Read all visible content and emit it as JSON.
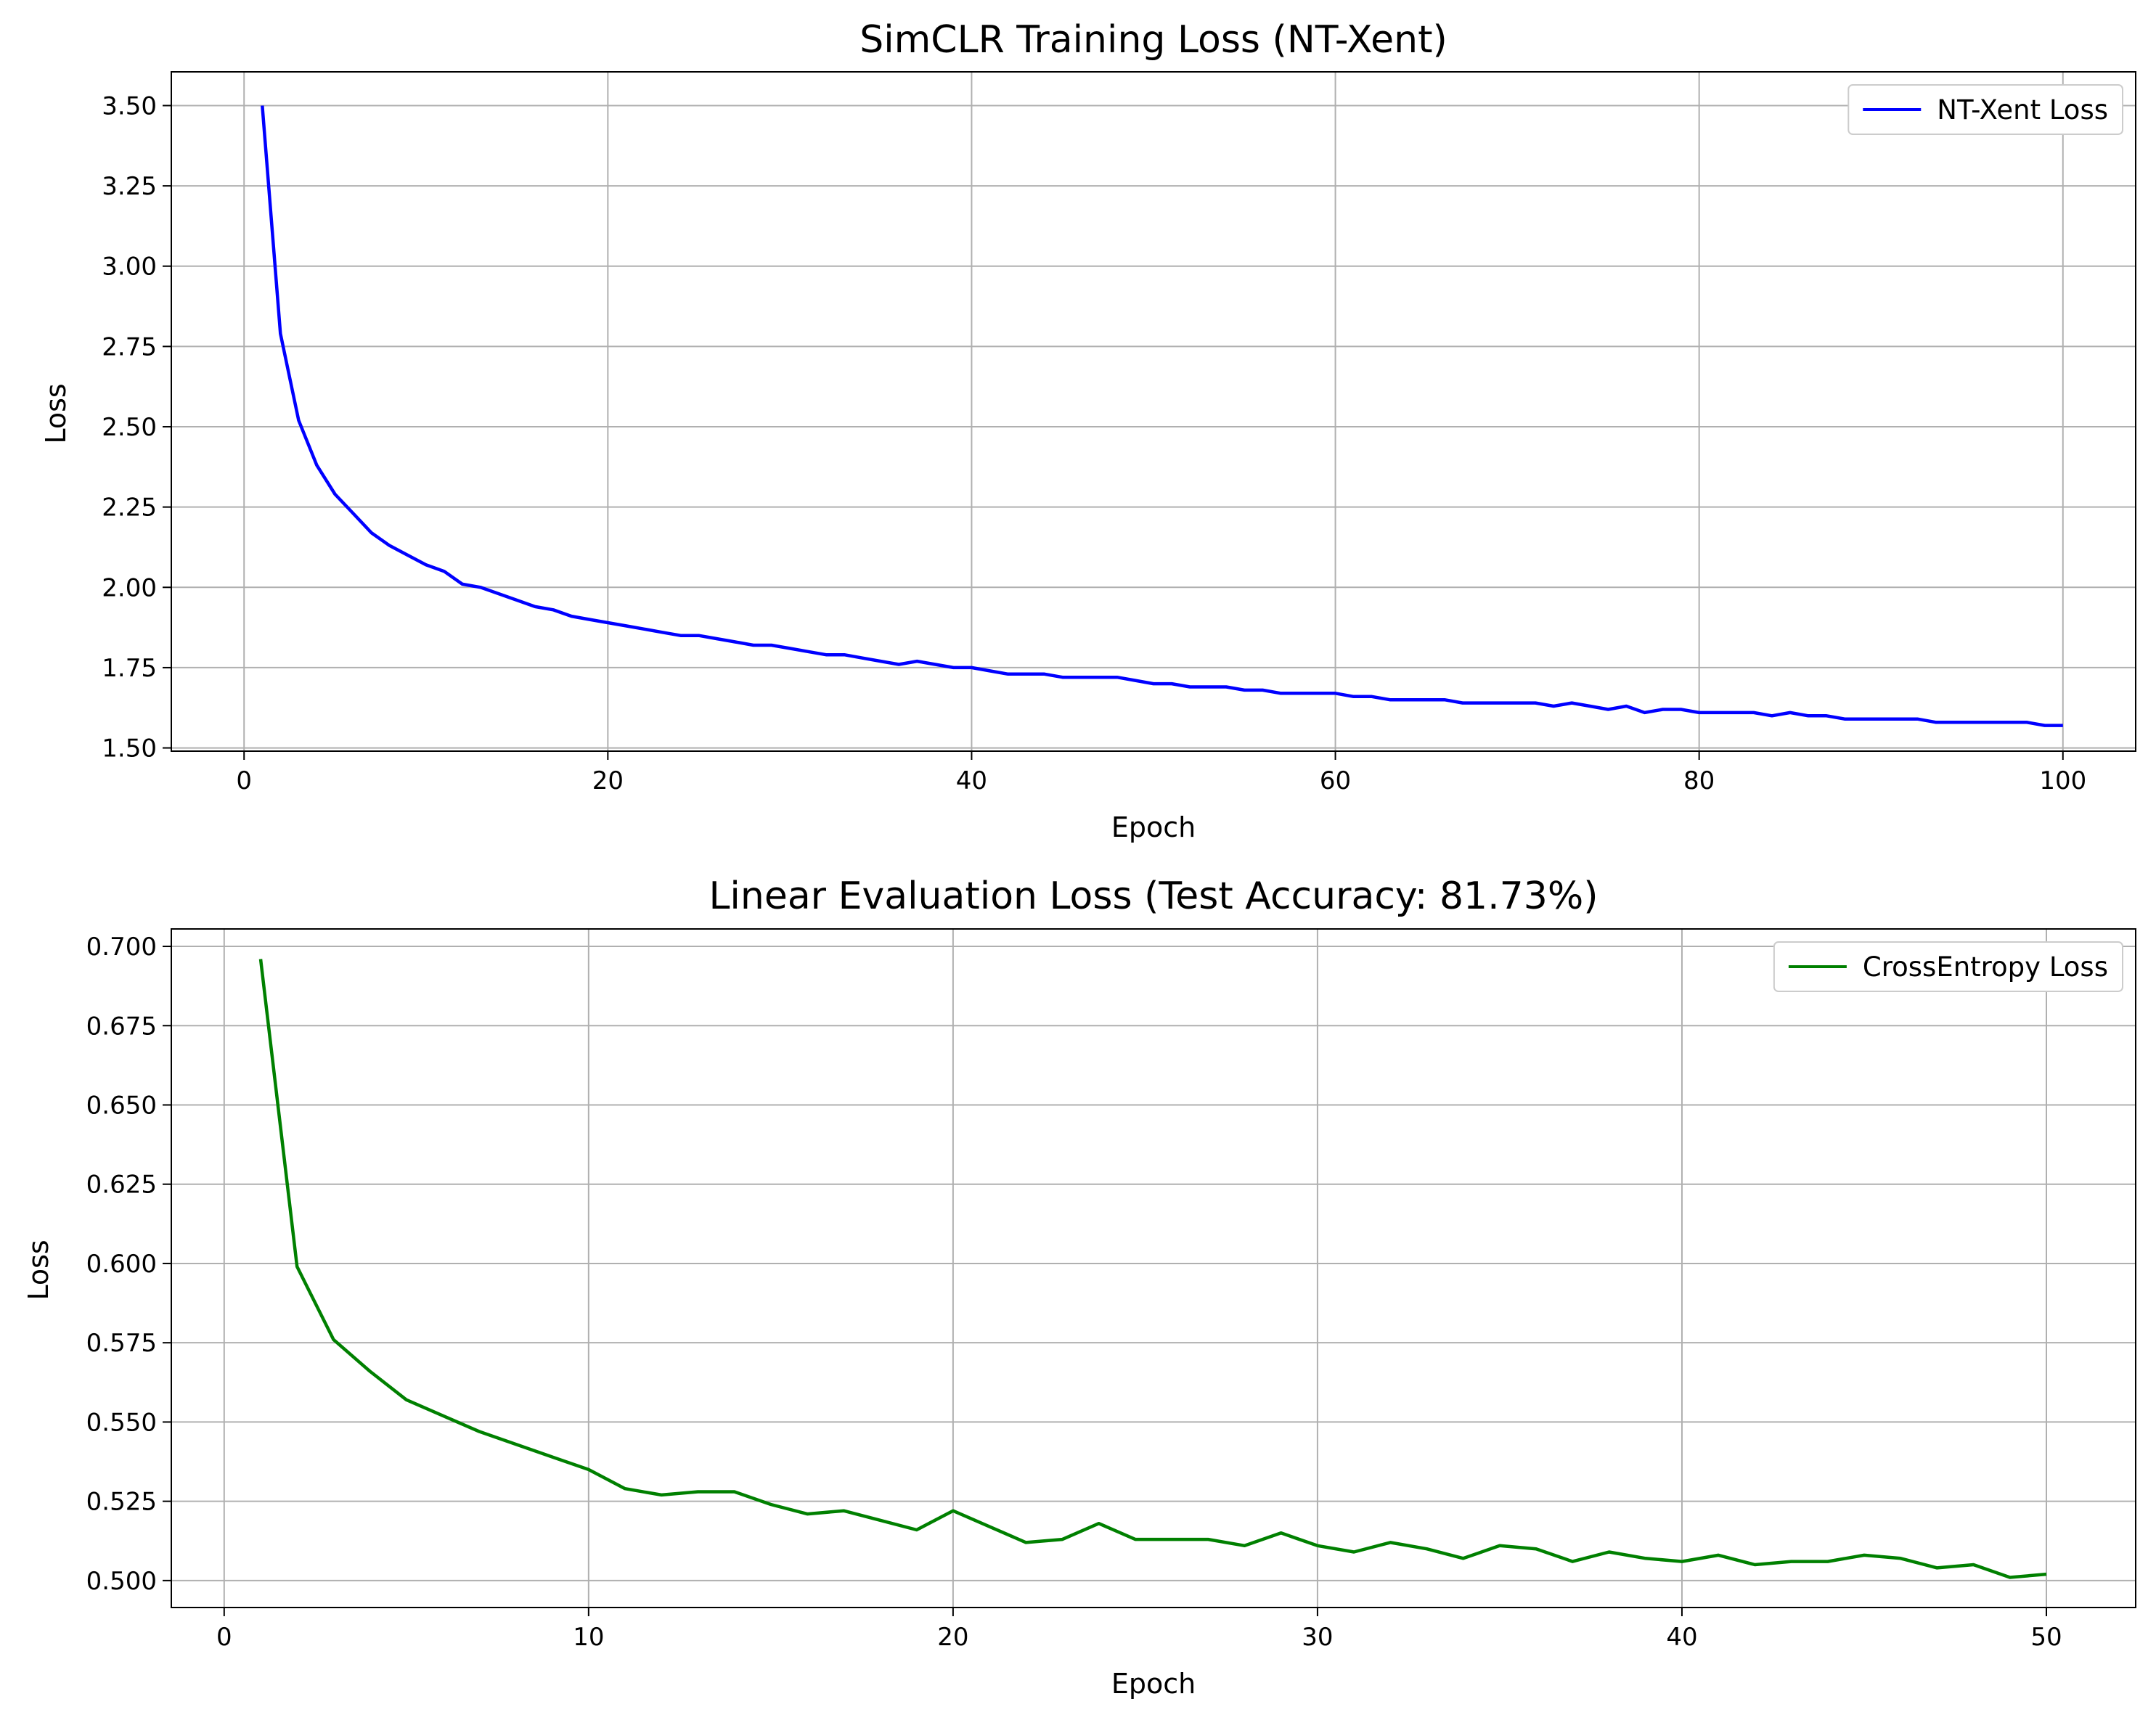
{
  "chart_data": [
    {
      "type": "line",
      "title": "SimCLR Training Loss (NT-Xent)",
      "xlabel": "Epoch",
      "ylabel": "Loss",
      "xlim": [
        -4,
        104
      ],
      "ylim": [
        1.49,
        3.605
      ],
      "xticks": [
        0,
        20,
        40,
        60,
        80,
        100
      ],
      "yticks": [
        1.5,
        1.75,
        2.0,
        2.25,
        2.5,
        2.75,
        3.0,
        3.25,
        3.5
      ],
      "ytick_decimals": 2,
      "grid": true,
      "legend_position": "top-right",
      "series": [
        {
          "name": "NT-Xent Loss",
          "color": "#0000ff",
          "x": [
            1,
            2,
            3,
            4,
            5,
            6,
            7,
            8,
            9,
            10,
            11,
            12,
            13,
            14,
            15,
            16,
            17,
            18,
            19,
            20,
            21,
            22,
            23,
            24,
            25,
            26,
            27,
            28,
            29,
            30,
            31,
            32,
            33,
            34,
            35,
            36,
            37,
            38,
            39,
            40,
            41,
            42,
            43,
            44,
            45,
            46,
            47,
            48,
            49,
            50,
            51,
            52,
            53,
            54,
            55,
            56,
            57,
            58,
            59,
            60,
            61,
            62,
            63,
            64,
            65,
            66,
            67,
            68,
            69,
            70,
            71,
            72,
            73,
            74,
            75,
            76,
            77,
            78,
            79,
            80,
            81,
            82,
            83,
            84,
            85,
            86,
            87,
            88,
            89,
            90,
            91,
            92,
            93,
            94,
            95,
            96,
            97,
            98,
            99,
            100
          ],
          "values": [
            3.5,
            2.79,
            2.52,
            2.38,
            2.29,
            2.23,
            2.17,
            2.13,
            2.1,
            2.07,
            2.05,
            2.01,
            2.0,
            1.98,
            1.96,
            1.94,
            1.93,
            1.91,
            1.9,
            1.89,
            1.88,
            1.87,
            1.86,
            1.85,
            1.85,
            1.84,
            1.83,
            1.82,
            1.82,
            1.81,
            1.8,
            1.79,
            1.79,
            1.78,
            1.77,
            1.76,
            1.77,
            1.76,
            1.75,
            1.75,
            1.74,
            1.73,
            1.73,
            1.73,
            1.72,
            1.72,
            1.72,
            1.72,
            1.71,
            1.7,
            1.7,
            1.69,
            1.69,
            1.69,
            1.68,
            1.68,
            1.67,
            1.67,
            1.67,
            1.67,
            1.66,
            1.66,
            1.65,
            1.65,
            1.65,
            1.65,
            1.64,
            1.64,
            1.64,
            1.64,
            1.64,
            1.63,
            1.64,
            1.63,
            1.62,
            1.63,
            1.61,
            1.62,
            1.62,
            1.61,
            1.61,
            1.61,
            1.61,
            1.6,
            1.61,
            1.6,
            1.6,
            1.59,
            1.59,
            1.59,
            1.59,
            1.59,
            1.58,
            1.58,
            1.58,
            1.58,
            1.58,
            1.58,
            1.57,
            1.57
          ]
        }
      ]
    },
    {
      "type": "line",
      "title": "Linear Evaluation Loss (Test Accuracy: 81.73%)",
      "xlabel": "Epoch",
      "ylabel": "Loss",
      "xlim": [
        -1.45,
        52.45
      ],
      "ylim": [
        0.4915,
        0.7055
      ],
      "xticks": [
        0,
        10,
        20,
        30,
        40,
        50
      ],
      "yticks": [
        0.5,
        0.525,
        0.55,
        0.575,
        0.6,
        0.625,
        0.65,
        0.675,
        0.7
      ],
      "ytick_decimals": 3,
      "grid": true,
      "legend_position": "top-right",
      "series": [
        {
          "name": "CrossEntropy Loss",
          "color": "#008000",
          "x": [
            1,
            2,
            3,
            4,
            5,
            6,
            7,
            8,
            9,
            10,
            11,
            12,
            13,
            14,
            15,
            16,
            17,
            18,
            19,
            20,
            21,
            22,
            23,
            24,
            25,
            26,
            27,
            28,
            29,
            30,
            31,
            32,
            33,
            34,
            35,
            36,
            37,
            38,
            39,
            40,
            41,
            42,
            43,
            44,
            45,
            46,
            47,
            48,
            49,
            50
          ],
          "values": [
            0.696,
            0.599,
            0.576,
            0.566,
            0.557,
            0.552,
            0.547,
            0.543,
            0.539,
            0.535,
            0.529,
            0.527,
            0.528,
            0.528,
            0.524,
            0.521,
            0.522,
            0.519,
            0.516,
            0.522,
            0.517,
            0.512,
            0.513,
            0.518,
            0.513,
            0.513,
            0.513,
            0.511,
            0.515,
            0.511,
            0.509,
            0.512,
            0.51,
            0.507,
            0.511,
            0.51,
            0.506,
            0.509,
            0.507,
            0.506,
            0.508,
            0.505,
            0.506,
            0.506,
            0.508,
            0.507,
            0.504,
            0.505,
            0.501,
            0.502
          ]
        }
      ]
    }
  ]
}
